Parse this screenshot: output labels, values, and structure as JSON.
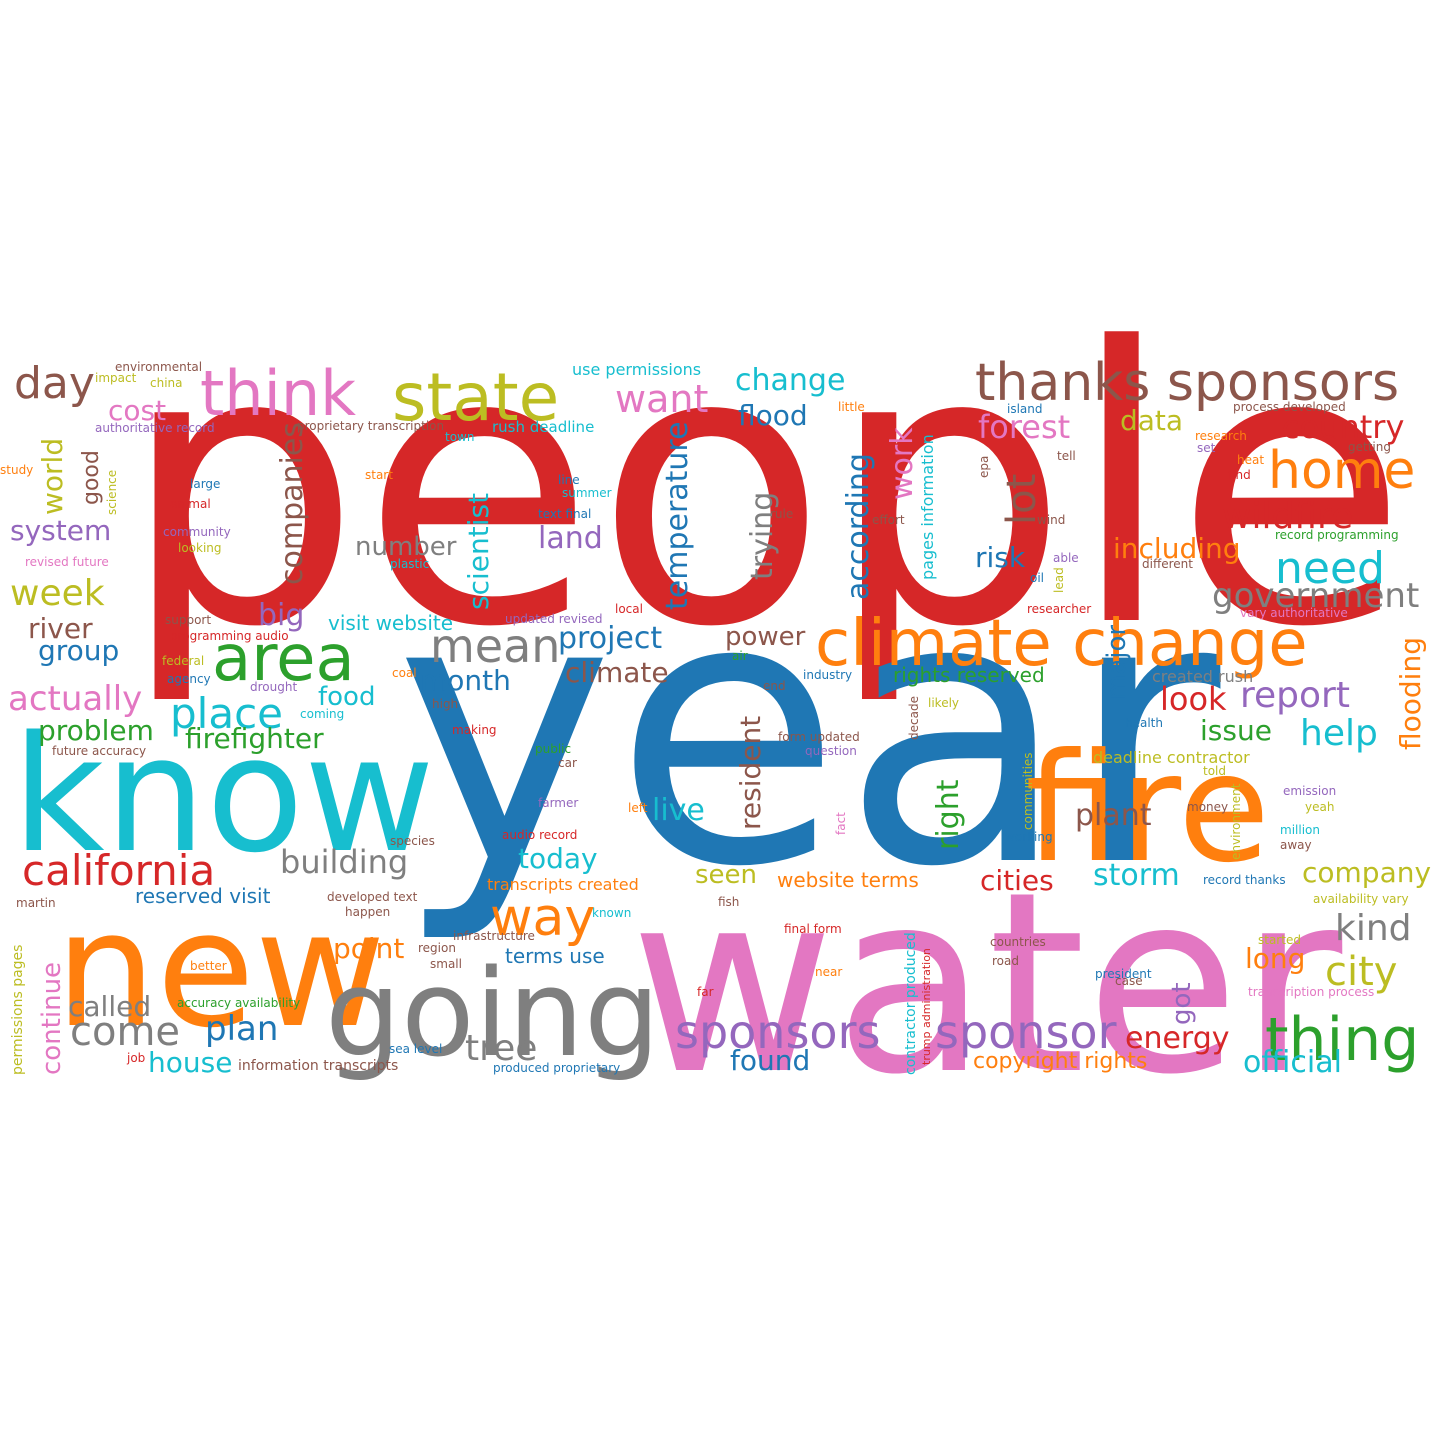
{
  "palette": {
    "red": "#d62728",
    "blue": "#1f77b4",
    "cyan": "#17becf",
    "orange": "#ff7f0e",
    "pink": "#e377c2",
    "gray": "#7f7f7f",
    "olive": "#bcbd22",
    "green": "#2ca02c",
    "purple": "#9467bd",
    "brown": "#8c564b"
  },
  "words": [
    {
      "text": "people",
      "color": "red"
    },
    {
      "text": "year",
      "color": "blue"
    },
    {
      "text": "water",
      "color": "pink"
    },
    {
      "text": "know",
      "color": "cyan"
    },
    {
      "text": "new",
      "color": "orange"
    },
    {
      "text": "fire",
      "color": "orange"
    },
    {
      "text": "going",
      "color": "gray"
    },
    {
      "text": "climate change",
      "color": "orange"
    },
    {
      "text": "think",
      "color": "pink"
    },
    {
      "text": "state",
      "color": "olive"
    },
    {
      "text": "thanks sponsors",
      "color": "brown"
    },
    {
      "text": "area",
      "color": "green"
    },
    {
      "text": "home",
      "color": "orange"
    },
    {
      "text": "thing",
      "color": "green"
    },
    {
      "text": "california",
      "color": "red"
    },
    {
      "text": "sponsors",
      "color": "purple"
    },
    {
      "text": "sponsor",
      "color": "purple"
    },
    {
      "text": "way",
      "color": "orange"
    },
    {
      "text": "mean",
      "color": "gray"
    },
    {
      "text": "day",
      "color": "brown"
    },
    {
      "text": "need",
      "color": "cyan"
    },
    {
      "text": "wildfire",
      "color": "red"
    },
    {
      "text": "city",
      "color": "olive"
    },
    {
      "text": "place",
      "color": "cyan"
    },
    {
      "text": "week",
      "color": "olive"
    },
    {
      "text": "come",
      "color": "gray"
    },
    {
      "text": "plan",
      "color": "blue"
    },
    {
      "text": "tree",
      "color": "gray"
    },
    {
      "text": "want",
      "color": "pink"
    },
    {
      "text": "change",
      "color": "cyan"
    },
    {
      "text": "flood",
      "color": "blue"
    },
    {
      "text": "country",
      "color": "red"
    },
    {
      "text": "forest",
      "color": "pink"
    },
    {
      "text": "government",
      "color": "gray"
    },
    {
      "text": "report",
      "color": "purple"
    },
    {
      "text": "kind",
      "color": "gray"
    },
    {
      "text": "look",
      "color": "red"
    },
    {
      "text": "help",
      "color": "cyan"
    },
    {
      "text": "actually",
      "color": "pink"
    },
    {
      "text": "building",
      "color": "gray"
    },
    {
      "text": "called",
      "color": "gray"
    },
    {
      "text": "house",
      "color": "cyan"
    },
    {
      "text": "project",
      "color": "blue"
    },
    {
      "text": "climate",
      "color": "brown"
    },
    {
      "text": "land",
      "color": "purple"
    },
    {
      "text": "number",
      "color": "gray"
    },
    {
      "text": "including",
      "color": "orange"
    },
    {
      "text": "data",
      "color": "olive"
    },
    {
      "text": "today",
      "color": "cyan"
    },
    {
      "text": "storm",
      "color": "cyan"
    },
    {
      "text": "cities",
      "color": "red"
    },
    {
      "text": "company",
      "color": "olive"
    },
    {
      "text": "plant",
      "color": "brown"
    },
    {
      "text": "live",
      "color": "cyan"
    },
    {
      "text": "energy",
      "color": "red"
    },
    {
      "text": "official",
      "color": "cyan"
    },
    {
      "text": "found",
      "color": "blue"
    },
    {
      "text": "long",
      "color": "orange"
    },
    {
      "text": "month",
      "color": "blue"
    },
    {
      "text": "power",
      "color": "brown"
    },
    {
      "text": "point",
      "color": "orange"
    },
    {
      "text": "food",
      "color": "cyan"
    },
    {
      "text": "problem",
      "color": "green"
    },
    {
      "text": "firefighter",
      "color": "green"
    },
    {
      "text": "system",
      "color": "purple"
    },
    {
      "text": "river",
      "color": "brown"
    },
    {
      "text": "group",
      "color": "blue"
    },
    {
      "text": "cost",
      "color": "pink"
    },
    {
      "text": "big",
      "color": "purple"
    },
    {
      "text": "risk",
      "color": "blue"
    },
    {
      "text": "issue",
      "color": "green"
    },
    {
      "text": "seen",
      "color": "olive"
    },
    {
      "text": "copyright rights",
      "color": "orange"
    },
    {
      "text": "website terms",
      "color": "orange"
    },
    {
      "text": "visit website",
      "color": "cyan"
    },
    {
      "text": "rights reserved",
      "color": "green"
    },
    {
      "text": "reserved visit",
      "color": "blue"
    },
    {
      "text": "terms use",
      "color": "blue"
    },
    {
      "text": "use permissions",
      "color": "cyan"
    },
    {
      "text": "rush deadline",
      "color": "cyan"
    },
    {
      "text": "created rush",
      "color": "gray"
    },
    {
      "text": "deadline contractor",
      "color": "olive"
    },
    {
      "text": "transcripts created",
      "color": "orange"
    },
    {
      "text": "environmental",
      "color": "brown"
    },
    {
      "text": "impact",
      "color": "olive"
    },
    {
      "text": "china",
      "color": "olive"
    },
    {
      "text": "authoritative record",
      "color": "purple"
    },
    {
      "text": "proprietary transcription",
      "color": "brown"
    },
    {
      "text": "town",
      "color": "cyan"
    },
    {
      "text": "study",
      "color": "orange"
    },
    {
      "text": "large",
      "color": "blue"
    },
    {
      "text": "start",
      "color": "orange"
    },
    {
      "text": "line",
      "color": "blue"
    },
    {
      "text": "summer",
      "color": "cyan"
    },
    {
      "text": "text final",
      "color": "blue"
    },
    {
      "text": "animal",
      "color": "red"
    },
    {
      "text": "community",
      "color": "purple"
    },
    {
      "text": "looking",
      "color": "olive"
    },
    {
      "text": "revised future",
      "color": "pink"
    },
    {
      "text": "plastic",
      "color": "cyan"
    },
    {
      "text": "rule",
      "color": "brown"
    },
    {
      "text": "effort",
      "color": "brown"
    },
    {
      "text": "little",
      "color": "orange"
    },
    {
      "text": "island",
      "color": "blue"
    },
    {
      "text": "process developed",
      "color": "brown"
    },
    {
      "text": "research",
      "color": "orange"
    },
    {
      "text": "set",
      "color": "purple"
    },
    {
      "text": "getting",
      "color": "brown"
    },
    {
      "text": "heat",
      "color": "orange"
    },
    {
      "text": "find",
      "color": "red"
    },
    {
      "text": "tell",
      "color": "brown"
    },
    {
      "text": "wind",
      "color": "brown"
    },
    {
      "text": "record programming",
      "color": "green"
    },
    {
      "text": "different",
      "color": "brown"
    },
    {
      "text": "oil",
      "color": "blue"
    },
    {
      "text": "able",
      "color": "purple"
    },
    {
      "text": "researcher",
      "color": "red"
    },
    {
      "text": "vary authoritative",
      "color": "pink"
    },
    {
      "text": "support",
      "color": "brown"
    },
    {
      "text": "programming audio",
      "color": "red"
    },
    {
      "text": "updated revised",
      "color": "purple"
    },
    {
      "text": "local",
      "color": "red"
    },
    {
      "text": "federal",
      "color": "olive"
    },
    {
      "text": "air",
      "color": "green"
    },
    {
      "text": "agency",
      "color": "blue"
    },
    {
      "text": "drought",
      "color": "purple"
    },
    {
      "text": "coal",
      "color": "orange"
    },
    {
      "text": "end",
      "color": "brown"
    },
    {
      "text": "industry",
      "color": "blue"
    },
    {
      "text": "coming",
      "color": "cyan"
    },
    {
      "text": "high",
      "color": "brown"
    },
    {
      "text": "likely",
      "color": "olive"
    },
    {
      "text": "making",
      "color": "red"
    },
    {
      "text": "future accuracy",
      "color": "brown"
    },
    {
      "text": "form updated",
      "color": "brown"
    },
    {
      "text": "question",
      "color": "purple"
    },
    {
      "text": "health",
      "color": "blue"
    },
    {
      "text": "public",
      "color": "green"
    },
    {
      "text": "car",
      "color": "brown"
    },
    {
      "text": "told",
      "color": "olive"
    },
    {
      "text": "emission",
      "color": "purple"
    },
    {
      "text": "yeah",
      "color": "olive"
    },
    {
      "text": "farmer",
      "color": "purple"
    },
    {
      "text": "left",
      "color": "orange"
    },
    {
      "text": "money",
      "color": "brown"
    },
    {
      "text": "million",
      "color": "cyan"
    },
    {
      "text": "away",
      "color": "brown"
    },
    {
      "text": "species",
      "color": "brown"
    },
    {
      "text": "audio record",
      "color": "red"
    },
    {
      "text": "working",
      "color": "blue"
    },
    {
      "text": "developed text",
      "color": "brown"
    },
    {
      "text": "martin",
      "color": "brown"
    },
    {
      "text": "happen",
      "color": "brown"
    },
    {
      "text": "known",
      "color": "cyan"
    },
    {
      "text": "fish",
      "color": "brown"
    },
    {
      "text": "record thanks",
      "color": "blue"
    },
    {
      "text": "availability vary",
      "color": "olive"
    },
    {
      "text": "infrastructure",
      "color": "brown"
    },
    {
      "text": "final form",
      "color": "red"
    },
    {
      "text": "region",
      "color": "brown"
    },
    {
      "text": "better",
      "color": "orange"
    },
    {
      "text": "small",
      "color": "brown"
    },
    {
      "text": "countries",
      "color": "brown"
    },
    {
      "text": "started",
      "color": "olive"
    },
    {
      "text": "road",
      "color": "brown"
    },
    {
      "text": "near",
      "color": "orange"
    },
    {
      "text": "president",
      "color": "blue"
    },
    {
      "text": "case",
      "color": "brown"
    },
    {
      "text": "accuracy availability",
      "color": "green"
    },
    {
      "text": "far",
      "color": "red"
    },
    {
      "text": "transcription process",
      "color": "pink"
    },
    {
      "text": "job",
      "color": "red"
    },
    {
      "text": "sea level",
      "color": "blue"
    },
    {
      "text": "information transcripts",
      "color": "brown"
    },
    {
      "text": "produced proprietary",
      "color": "blue"
    },
    {
      "text": "temperature",
      "color": "blue"
    },
    {
      "text": "scientist",
      "color": "cyan"
    },
    {
      "text": "companies",
      "color": "brown"
    },
    {
      "text": "trying",
      "color": "gray"
    },
    {
      "text": "according",
      "color": "blue"
    },
    {
      "text": "work",
      "color": "pink"
    },
    {
      "text": "lot",
      "color": "brown"
    },
    {
      "text": "pages information",
      "color": "cyan"
    },
    {
      "text": "world",
      "color": "olive"
    },
    {
      "text": "good",
      "color": "brown"
    },
    {
      "text": "science",
      "color": "olive"
    },
    {
      "text": "epa",
      "color": "brown"
    },
    {
      "text": "lead",
      "color": "olive"
    },
    {
      "text": "major",
      "color": "blue"
    },
    {
      "text": "resident",
      "color": "brown"
    },
    {
      "text": "right",
      "color": "green"
    },
    {
      "text": "flooding",
      "color": "orange"
    },
    {
      "text": "decade",
      "color": "brown"
    },
    {
      "text": "communities",
      "color": "olive"
    },
    {
      "text": "fact",
      "color": "pink"
    },
    {
      "text": "environment",
      "color": "olive"
    },
    {
      "text": "continue",
      "color": "pink"
    },
    {
      "text": "permissions pages",
      "color": "olive"
    },
    {
      "text": "contractor produced",
      "color": "cyan"
    },
    {
      "text": "trump administration",
      "color": "red"
    },
    {
      "text": "got",
      "color": "purple"
    }
  ]
}
